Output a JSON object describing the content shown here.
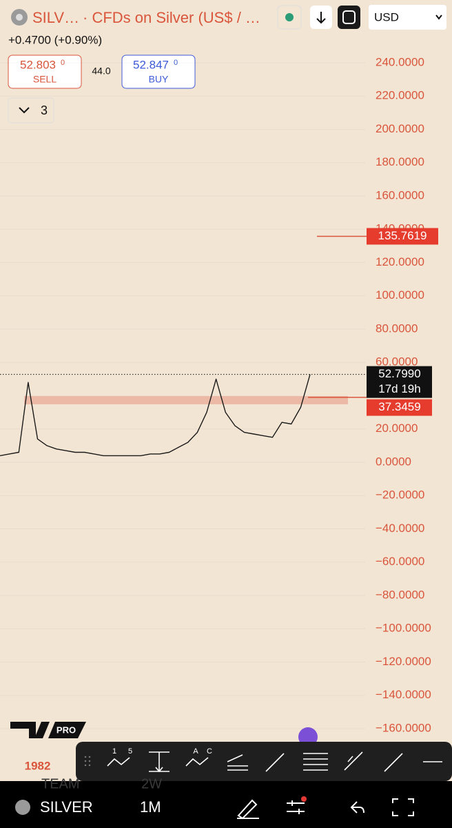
{
  "header": {
    "symbol": "SILV…",
    "description": "· CFDs on Silver (US$ / …",
    "currency": "USD",
    "change": "+0.4700 (+0.90%)"
  },
  "trade": {
    "sell_price": "52.803",
    "sell_superscript": "0",
    "sell_label": "SELL",
    "spread": "44.0",
    "buy_price": "52.847",
    "buy_superscript": "0",
    "buy_label": "BUY"
  },
  "indicators_count": "3",
  "chart_data": {
    "type": "line",
    "color": "#1a1a1a",
    "categories": [
      null,
      null,
      null,
      null,
      "1982",
      null,
      null,
      null,
      null,
      null,
      null,
      null,
      null,
      null,
      null,
      null,
      null,
      null,
      null,
      null,
      null,
      null,
      null,
      null,
      null,
      null,
      null,
      null,
      null,
      null,
      null,
      null,
      null,
      null
    ],
    "values": [
      4,
      5,
      6,
      48,
      14,
      10,
      8,
      7,
      6,
      6,
      5,
      4,
      4,
      4,
      4,
      4,
      5,
      5,
      6,
      9,
      12,
      18,
      30,
      50,
      30,
      22,
      18,
      17,
      16,
      15,
      24,
      23,
      33,
      52.799
    ],
    "ylim": [
      -168,
      257
    ],
    "yticks": [
      {
        "value": -160,
        "label": "−160.0000"
      },
      {
        "value": -140,
        "label": "−140.0000"
      },
      {
        "value": -120,
        "label": "−120.0000"
      },
      {
        "value": -100,
        "label": "−100.0000"
      },
      {
        "value": -80,
        "label": "−80.0000"
      },
      {
        "value": -60,
        "label": "−60.0000"
      },
      {
        "value": -40,
        "label": "−40.0000"
      },
      {
        "value": -20,
        "label": "−20.0000"
      },
      {
        "value": 0,
        "label": "0.0000"
      },
      {
        "value": 20,
        "label": "20.0000"
      },
      {
        "value": 60,
        "label": "60.0000"
      },
      {
        "value": 80,
        "label": "80.0000"
      },
      {
        "value": 100,
        "label": "100.0000"
      },
      {
        "value": 120,
        "label": "120.0000"
      },
      {
        "value": 140,
        "label": "140.0000"
      },
      {
        "value": 160,
        "label": "160.0000"
      },
      {
        "value": 180,
        "label": "180.0000"
      },
      {
        "value": 200,
        "label": "200.0000"
      },
      {
        "value": 220,
        "label": "220.0000"
      },
      {
        "value": 240,
        "label": "240.0000"
      }
    ],
    "grid": true,
    "last_price": {
      "value": 52.799,
      "label": "52.7990"
    },
    "countdown": "17d 19h",
    "support": {
      "value": 37.3459,
      "label": "37.3459"
    },
    "target": {
      "value": 135.7619,
      "label": "135.7619"
    }
  },
  "logo": "PRO",
  "toolbar": {
    "labels": [
      "1",
      "5",
      "A",
      "C"
    ]
  },
  "bottom_bar": {
    "symbol": "SILVER",
    "interval": "1M",
    "ghost": [
      "TEAM",
      "2W"
    ]
  }
}
